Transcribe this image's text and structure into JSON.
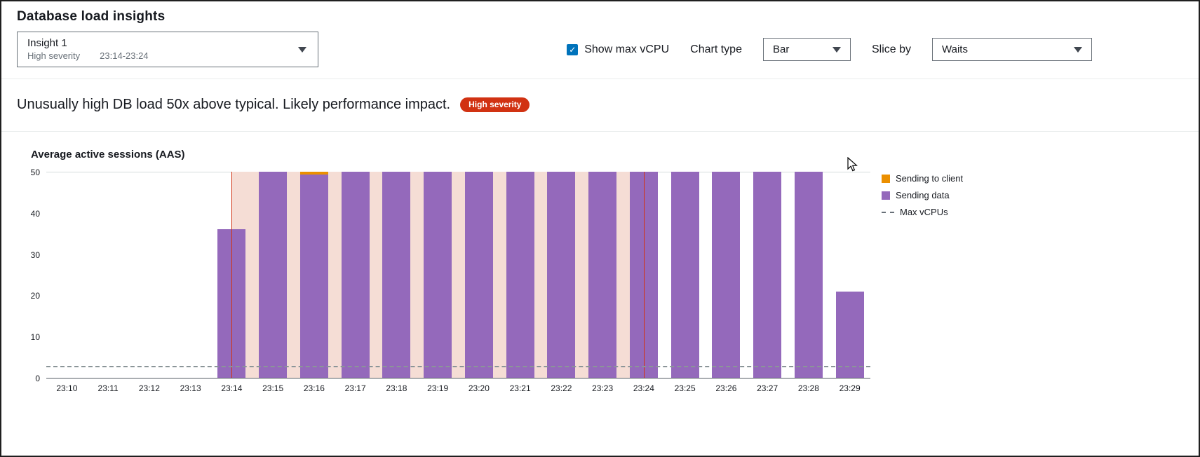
{
  "page": {
    "title": "Database load insights"
  },
  "insight_selector": {
    "label": "Insight 1",
    "severity": "High severity",
    "time_range": "23:14-23:24"
  },
  "controls": {
    "show_max_vcpu_label": "Show max vCPU",
    "checkbox_checked": "✓",
    "chart_type_label": "Chart type",
    "chart_type_value": "Bar",
    "slice_by_label": "Slice by",
    "slice_by_value": "Waits"
  },
  "alert": {
    "message": "Unusually high DB load 50x above typical. Likely performance impact.",
    "badge": "High severity"
  },
  "chart_data": {
    "type": "bar",
    "title": "Average active sessions (AAS)",
    "categories": [
      "23:10",
      "23:11",
      "23:12",
      "23:13",
      "23:14",
      "23:15",
      "23:16",
      "23:17",
      "23:18",
      "23:19",
      "23:20",
      "23:21",
      "23:22",
      "23:23",
      "23:24",
      "23:25",
      "23:26",
      "23:27",
      "23:28",
      "23:29"
    ],
    "series": [
      {
        "name": "Sending to client",
        "color": "#eb8f00",
        "values": [
          0,
          0,
          0,
          0,
          0,
          0,
          0.7,
          0,
          0,
          0,
          0,
          0,
          0,
          0,
          0,
          0,
          0,
          0,
          0,
          0
        ]
      },
      {
        "name": "Sending data",
        "color": "#9469bb",
        "values": [
          0,
          0,
          0,
          0,
          36,
          50,
          49.3,
          50,
          50,
          50,
          50,
          50,
          50,
          50,
          50,
          50,
          50,
          50,
          50,
          21
        ]
      }
    ],
    "max_vcpus": {
      "label": "Max vCPUs",
      "value": 2.5
    },
    "highlight": {
      "start": "23:14",
      "end": "23:24",
      "color": "#f5ddd5",
      "border_color": "#d13212"
    },
    "ylim": [
      0,
      50
    ],
    "yticks": [
      0,
      10,
      20,
      30,
      40,
      50
    ],
    "xlabel": "",
    "ylabel": "Average active sessions (AAS)",
    "legend_position": "right",
    "grid": false
  }
}
